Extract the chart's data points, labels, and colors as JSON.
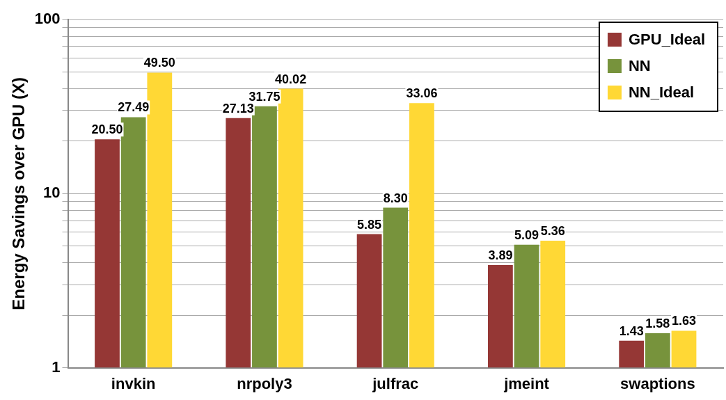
{
  "chart_data": {
    "type": "bar",
    "ylabel": "Energy Savings over GPU (X)",
    "categories": [
      "invkin",
      "nrpoly3",
      "julfrac",
      "jmeint",
      "swaptions"
    ],
    "series": [
      {
        "name": "GPU_Ideal",
        "color": "#953735",
        "values": [
          20.5,
          27.13,
          5.85,
          3.89,
          1.43
        ],
        "value_labels": [
          "20.50",
          "27.13",
          "5.85",
          "3.89",
          "1.43"
        ]
      },
      {
        "name": "NN",
        "color": "#77933c",
        "values": [
          27.49,
          31.75,
          8.3,
          5.09,
          1.58
        ],
        "value_labels": [
          "27.49",
          "31.75",
          "8.30",
          "5.09",
          "1.58"
        ]
      },
      {
        "name": "NN_Ideal",
        "color": "#ffd835",
        "values": [
          49.5,
          40.02,
          33.06,
          5.36,
          1.63
        ],
        "value_labels": [
          "49.50",
          "40.02",
          "33.06",
          "5.36",
          "1.63"
        ]
      }
    ],
    "log": true,
    "ylim": [
      1,
      100
    ],
    "yticks": [
      1,
      {
        "value": 2,
        "label": null
      },
      {
        "value": 3,
        "label": null
      },
      {
        "value": 4,
        "label": null
      },
      {
        "value": 5,
        "label": null
      },
      {
        "value": 6,
        "label": null
      },
      {
        "value": 7,
        "label": null
      },
      {
        "value": 8,
        "label": null
      },
      {
        "value": 9,
        "label": null
      },
      10,
      {
        "value": 20,
        "label": null
      },
      {
        "value": 30,
        "label": null
      },
      {
        "value": 40,
        "label": null
      },
      {
        "value": 50,
        "label": null
      },
      {
        "value": 60,
        "label": null
      },
      {
        "value": 70,
        "label": null
      },
      {
        "value": 80,
        "label": null
      },
      {
        "value": 90,
        "label": null
      },
      100
    ],
    "grid": "y",
    "legend": "top right"
  }
}
